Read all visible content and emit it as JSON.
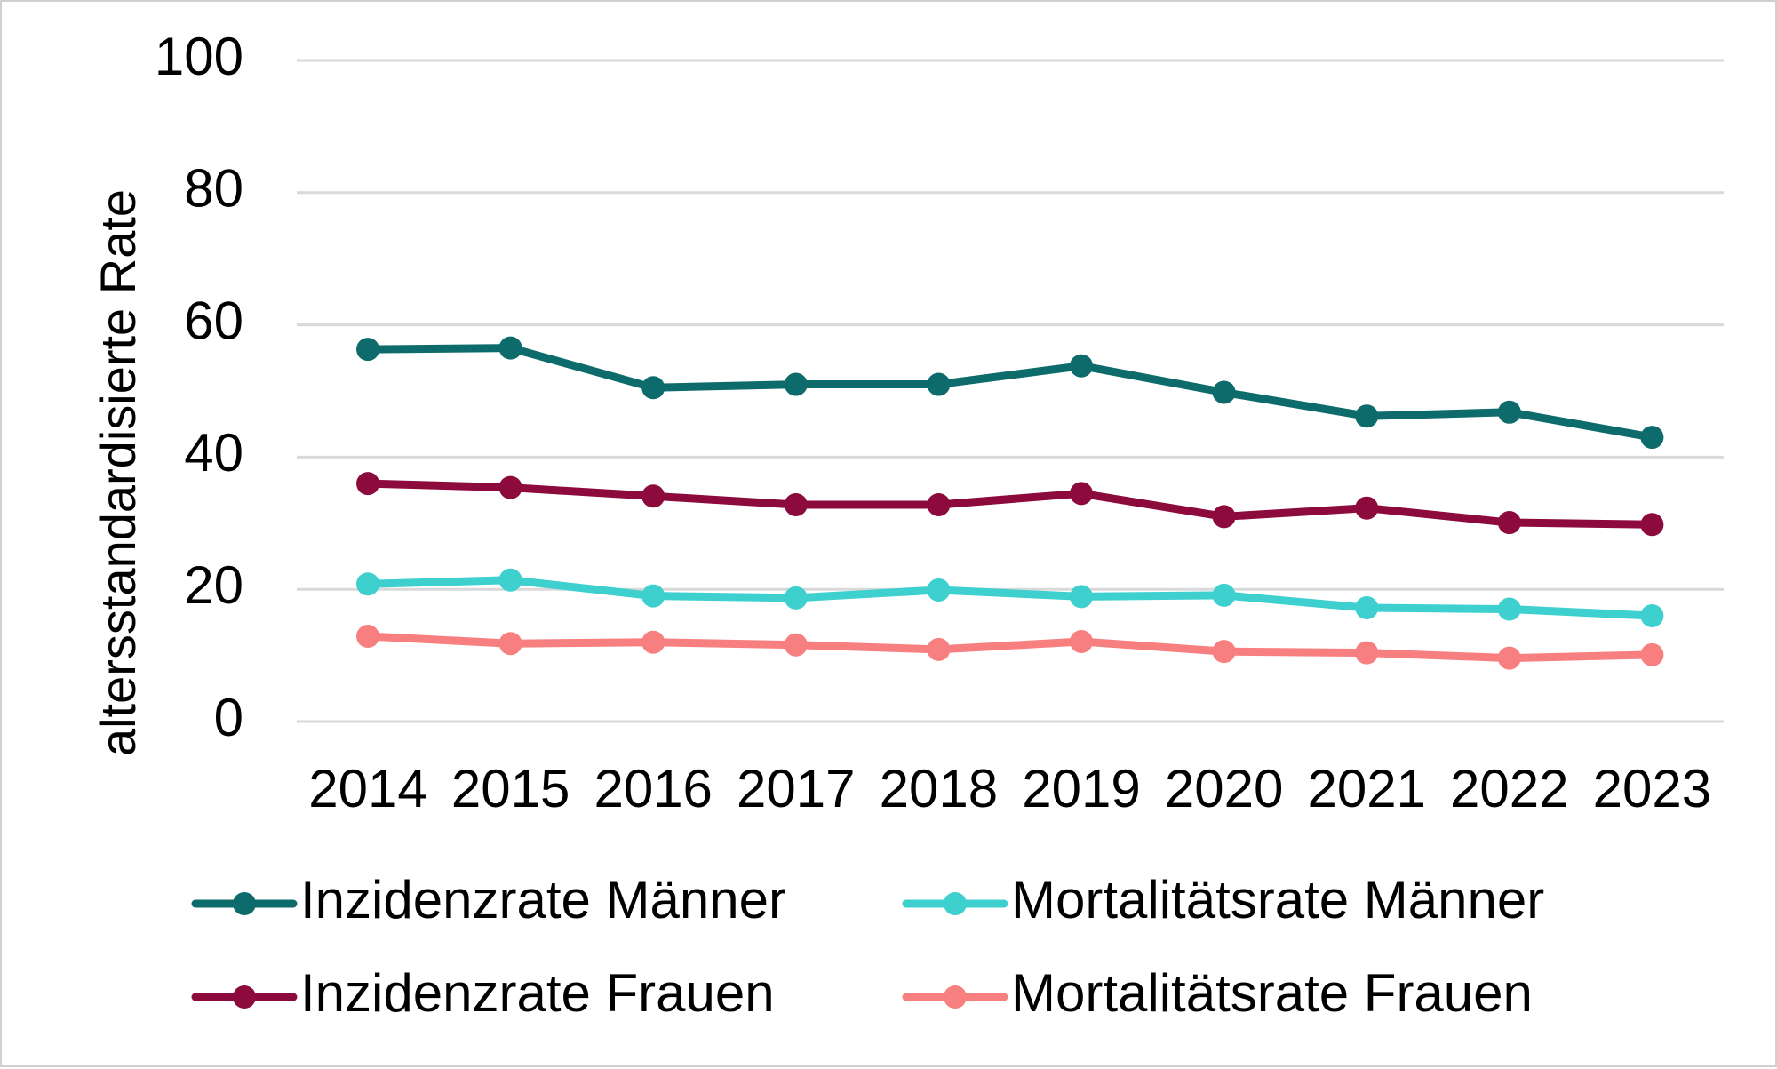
{
  "chart_data": {
    "type": "line",
    "ylabel": "altersstandardisierte Rate",
    "xlabel": "",
    "ylim": [
      0,
      100
    ],
    "yticks": [
      0,
      20,
      40,
      60,
      80,
      100
    ],
    "grid": true,
    "legend_position": "bottom",
    "categories": [
      "2014",
      "2015",
      "2016",
      "2017",
      "2018",
      "2019",
      "2020",
      "2021",
      "2022",
      "2023"
    ],
    "series": [
      {
        "name": "Inzidenzrate Männer",
        "color": "#0e6b6b",
        "values": [
          56.3,
          56.5,
          50.5,
          51.0,
          51.0,
          53.8,
          49.8,
          46.2,
          46.8,
          43.0
        ]
      },
      {
        "name": "Mortalitätsrate Männer",
        "color": "#3ecfcf",
        "values": [
          20.8,
          21.4,
          19.0,
          18.7,
          19.9,
          18.9,
          19.1,
          17.2,
          17.0,
          16.0
        ]
      },
      {
        "name": "Inzidenzrate Frauen",
        "color": "#8c0a3c",
        "values": [
          36.0,
          35.4,
          34.1,
          32.8,
          32.8,
          34.5,
          31.0,
          32.3,
          30.1,
          29.8
        ]
      },
      {
        "name": "Mortalitätsrate Frauen",
        "color": "#f87f7f",
        "values": [
          12.9,
          11.8,
          12.0,
          11.6,
          10.9,
          12.1,
          10.6,
          10.4,
          9.6,
          10.1
        ]
      }
    ]
  }
}
